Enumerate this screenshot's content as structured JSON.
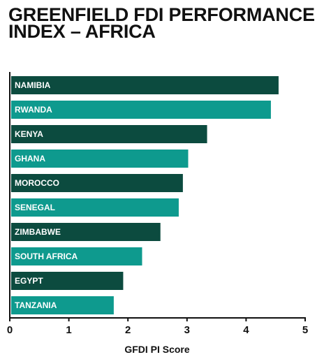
{
  "title_lines": [
    "GREENFIELD FDI PERFORMANCE",
    "INDEX – AFRICA"
  ],
  "colors": {
    "dark_bar": "#0c4b3f",
    "light_bar": "#0e9a8e",
    "axis": "#111111",
    "bar_text": "#ffffff"
  },
  "chart_data": {
    "type": "bar",
    "orientation": "horizontal",
    "title": "GREENFIELD FDI PERFORMANCE INDEX – AFRICA",
    "categories": [
      "NAMIBIA",
      "RWANDA",
      "KENYA",
      "GHANA",
      "MOROCCO",
      "SENEGAL",
      "ZIMBABWE",
      "SOUTH AFRICA",
      "EGYPT",
      "TANZANIA"
    ],
    "values": [
      4.55,
      4.42,
      3.34,
      3.02,
      2.93,
      2.86,
      2.55,
      2.24,
      1.92,
      1.76
    ],
    "xlabel": "GFDI PI Score",
    "ylabel": "",
    "xlim": [
      0,
      5
    ],
    "xticks": [
      "0",
      "1",
      "2",
      "3",
      "4",
      "5"
    ],
    "grid": false,
    "legend": "none",
    "bar_colors": [
      "dark",
      "light",
      "dark",
      "light",
      "dark",
      "light",
      "dark",
      "light",
      "dark",
      "light"
    ]
  }
}
